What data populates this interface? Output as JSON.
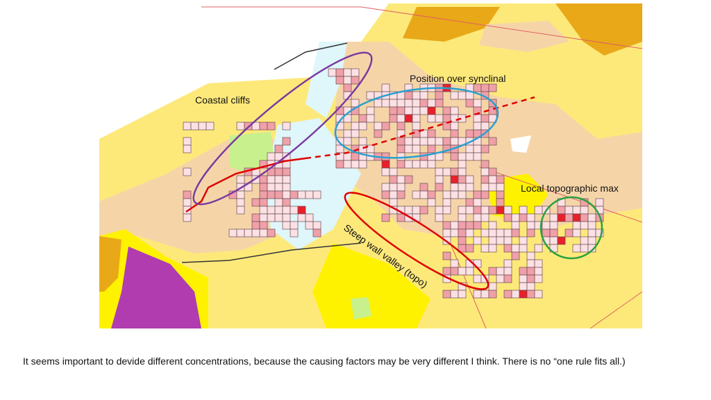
{
  "map": {
    "annotations": [
      "Coastal cliffs",
      "Position over synclinal",
      "Local topographic max",
      "Steep wall valley (topo)"
    ]
  },
  "caption": "It seems important to devide different concentrations, because the causing factors may be very different I think. There is no “one rule fits all.)"
}
